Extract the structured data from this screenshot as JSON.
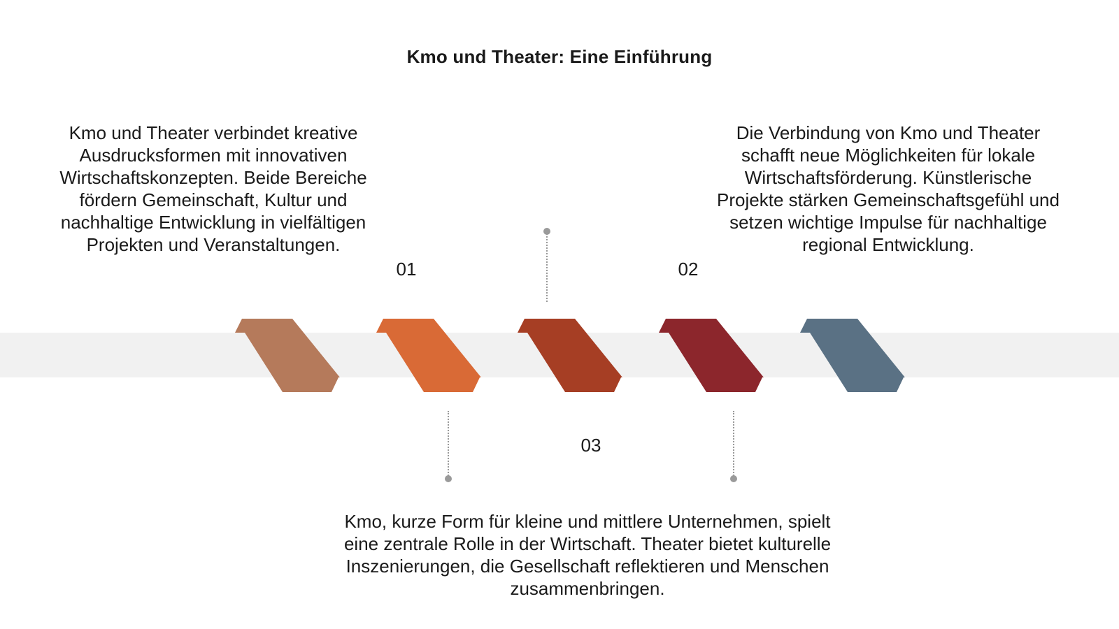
{
  "title": "Kmo und Theater: Eine Einführung",
  "steps": [
    {
      "number": "01",
      "text": "Kmo und Theater verbindet kreative Ausdrucksformen mit innovativen Wirtschaftskonzepten. Beide Bereiche fördern Gemeinschaft, Kultur und nachhaltige Entwicklung in vielfältigen Projekten und Veranstaltungen."
    },
    {
      "number": "02",
      "text": "Die Verbindung von Kmo und Theater schafft neue Möglichkeiten für lokale Wirtschaftsförderung. Künstlerische Projekte stärken Gemeinschaftsgefühl und setzen wichtige Impulse für nachhaltige regional Entwicklung."
    },
    {
      "number": "03",
      "text": "Kmo, kurze Form für kleine und mittlere Unternehmen, spielt eine zentrale Rolle in der Wirtschaft. Theater bietet kulturelle Inszenierungen, die Gesellschaft reflektieren und Menschen zusammenbringen."
    }
  ],
  "colors": {
    "band": "#f1f1f1",
    "connector": "#9a9a9a",
    "shapes": [
      "#b57a5b",
      "#d96a36",
      "#a63e24",
      "#8c262c",
      "#5a7184"
    ]
  }
}
